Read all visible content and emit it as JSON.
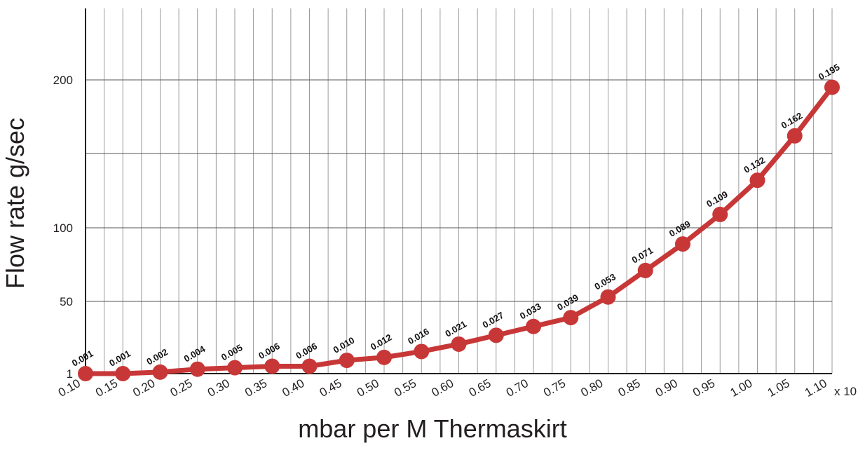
{
  "chart_data": {
    "type": "line",
    "ylabel": "Flow rate g/sec",
    "xlabel": "mbar per M Thermaskirt",
    "x_unit_suffix": "x 10",
    "x": [
      "0.10",
      "0.15",
      "0.20",
      "0.25",
      "0.30",
      "0.35",
      "0.40",
      "0.45",
      "0.50",
      "0.55",
      "0.60",
      "0.65",
      "0.70",
      "0.75",
      "0.80",
      "0.85",
      "0.90",
      "0.95",
      "1.00",
      "1.05",
      "1.10"
    ],
    "y": [
      1,
      1,
      2,
      4,
      5,
      6,
      6,
      10,
      12,
      16,
      21,
      27,
      33,
      39,
      53,
      71,
      89,
      109,
      132,
      162,
      195
    ],
    "data_labels": [
      "0.001",
      "0.001",
      "0.002",
      "0.004",
      "0.005",
      "0.006",
      "0.006",
      "0.010",
      "0.012",
      "0.016",
      "0.021",
      "0.027",
      "0.033",
      "0.039",
      "0.053",
      "0.071",
      "0.089",
      "0.109",
      "0.132",
      "0.162",
      "0.195"
    ],
    "y_ticks": [
      {
        "value": 1,
        "label": "1"
      },
      {
        "value": 50,
        "label": "50"
      },
      {
        "value": 100,
        "label": "100"
      },
      {
        "value": 150,
        "label": ""
      },
      {
        "value": 200,
        "label": "200"
      },
      {
        "value": 250,
        "label": ""
      }
    ],
    "ylim": [
      1,
      250
    ],
    "line_color": "#c83737",
    "grid": true
  }
}
